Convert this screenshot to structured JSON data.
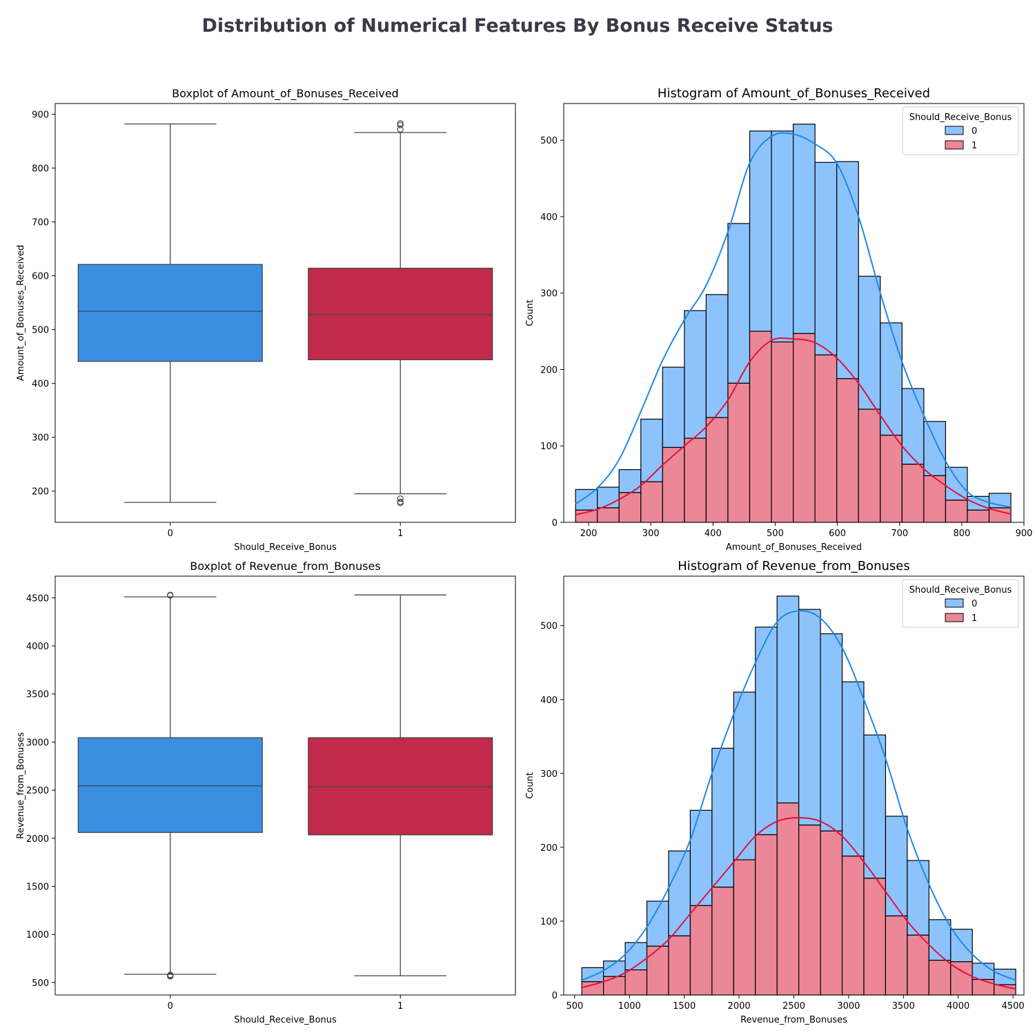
{
  "title": "Distribution of Numerical Features By Bonus Receive Status",
  "colors": {
    "box0": "#3a8fe3",
    "box1": "#c12a4a",
    "hist0": "#8dc3fd",
    "hist1": "#ec8798",
    "kde0": "#1e88e5",
    "kde1": "#dc143c"
  },
  "chart_data": [
    {
      "type": "boxplot",
      "title": "Boxplot of Amount_of_Bonuses_Received",
      "xlabel": "Should_Receive_Bonus",
      "ylabel": "Amount_of_Bonuses_Received",
      "categories": [
        "0",
        "1"
      ],
      "ylim": [
        142,
        920
      ],
      "yticks": [
        200,
        300,
        400,
        500,
        600,
        700,
        800,
        900
      ],
      "boxes": [
        {
          "category": "0",
          "whisker_low": 179,
          "q1": 441,
          "median": 534,
          "q3": 621,
          "whisker_high": 882,
          "outliers": []
        },
        {
          "category": "1",
          "whisker_low": 195,
          "q1": 444,
          "median": 528,
          "q3": 614,
          "whisker_high": 866,
          "outliers": [
            178,
            180,
            186,
            872,
            880,
            883
          ]
        }
      ]
    },
    {
      "type": "histogram",
      "title": "Histogram of Amount_of_Bonuses_Received",
      "xlabel": "Amount_of_Bonuses_Received",
      "ylabel": "Count",
      "legend": {
        "title": "Should_Receive_Bonus",
        "labels": [
          "0",
          "1"
        ],
        "position": "top-right"
      },
      "multiple": "stack",
      "xlim": [
        160,
        900
      ],
      "ylim": [
        0,
        548
      ],
      "xticks": [
        200,
        300,
        400,
        500,
        600,
        700,
        800,
        900
      ],
      "yticks": [
        0,
        100,
        200,
        300,
        400,
        500
      ],
      "bin_edges": [
        179,
        214,
        249,
        284,
        319,
        354,
        389,
        424,
        459,
        494,
        529,
        564,
        599,
        634,
        669,
        704,
        739,
        774,
        809,
        844,
        879
      ],
      "series": [
        {
          "name": "0",
          "stack_totals": [
            43,
            46,
            69,
            135,
            203,
            277,
            298,
            391,
            512,
            512,
            521,
            471,
            472,
            322,
            261,
            175,
            132,
            72,
            34,
            38
          ]
        },
        {
          "name": "1",
          "values": [
            16,
            19,
            39,
            53,
            98,
            110,
            137,
            182,
            250,
            236,
            247,
            219,
            188,
            148,
            114,
            76,
            61,
            29,
            16,
            19
          ]
        }
      ],
      "kde": [
        {
          "name": "0",
          "x": [
            179,
            214,
            249,
            284,
            319,
            354,
            389,
            424,
            459,
            494,
            529,
            564,
            599,
            634,
            669,
            704,
            739,
            774,
            809,
            844,
            879
          ],
          "y": [
            24,
            45,
            82,
            145,
            212,
            265,
            310,
            380,
            470,
            505,
            508,
            495,
            470,
            400,
            300,
            210,
            140,
            80,
            40,
            26,
            20
          ]
        },
        {
          "name": "1",
          "x": [
            179,
            214,
            249,
            284,
            319,
            354,
            389,
            424,
            459,
            494,
            529,
            564,
            599,
            634,
            669,
            704,
            739,
            774,
            809,
            844,
            879
          ],
          "y": [
            10,
            17,
            30,
            48,
            75,
            100,
            125,
            160,
            210,
            238,
            240,
            235,
            215,
            182,
            140,
            100,
            70,
            48,
            30,
            18,
            11
          ]
        }
      ]
    },
    {
      "type": "boxplot",
      "title": "Boxplot of Revenue_from_Bonuses",
      "xlabel": "Should_Receive_Bonus",
      "ylabel": "Revenue_from_Bonuses",
      "categories": [
        "0",
        "1"
      ],
      "ylim": [
        370,
        4725
      ],
      "yticks": [
        500,
        1000,
        1500,
        2000,
        2500,
        3000,
        3500,
        4000,
        4500
      ],
      "boxes": [
        {
          "category": "0",
          "whisker_low": 585,
          "q1": 2060,
          "median": 2545,
          "q3": 3045,
          "whisker_high": 4510,
          "outliers": [
            565,
            570,
            578,
            4525,
            4530
          ]
        },
        {
          "category": "1",
          "whisker_low": 570,
          "q1": 2035,
          "median": 2535,
          "q3": 3045,
          "whisker_high": 4530,
          "outliers": []
        }
      ]
    },
    {
      "type": "histogram",
      "title": "Histogram of Revenue_from_Bonuses",
      "xlabel": "Revenue_from_Bonuses",
      "ylabel": "Count",
      "legend": {
        "title": "Should_Receive_Bonus",
        "labels": [
          "0",
          "1"
        ],
        "position": "top-right"
      },
      "multiple": "stack",
      "xlim": [
        400,
        4600
      ],
      "ylim": [
        0,
        567
      ],
      "xticks": [
        500,
        1000,
        1500,
        2000,
        2500,
        3000,
        3500,
        4000,
        4500
      ],
      "yticks": [
        0,
        100,
        200,
        300,
        400,
        500
      ],
      "bin_edges": [
        565,
        763,
        961,
        1159,
        1357,
        1555,
        1753,
        1951,
        2149,
        2347,
        2545,
        2743,
        2941,
        3139,
        3337,
        3535,
        3733,
        3931,
        4129,
        4327,
        4525
      ],
      "series": [
        {
          "name": "0",
          "stack_totals": [
            37,
            46,
            71,
            127,
            195,
            250,
            334,
            410,
            498,
            540,
            522,
            489,
            424,
            352,
            242,
            182,
            102,
            89,
            43,
            35
          ]
        },
        {
          "name": "1",
          "values": [
            18,
            25,
            34,
            66,
            80,
            121,
            146,
            183,
            217,
            260,
            230,
            222,
            188,
            158,
            107,
            81,
            47,
            45,
            21,
            14
          ]
        }
      ],
      "kde": [
        {
          "name": "0",
          "x": [
            565,
            763,
            961,
            1159,
            1357,
            1555,
            1753,
            1951,
            2149,
            2347,
            2545,
            2743,
            2941,
            3139,
            3337,
            3535,
            3733,
            3931,
            4129,
            4327,
            4525
          ],
          "y": [
            20,
            33,
            55,
            92,
            145,
            210,
            300,
            380,
            450,
            505,
            520,
            510,
            470,
            400,
            320,
            225,
            150,
            92,
            55,
            32,
            20
          ]
        },
        {
          "name": "1",
          "x": [
            565,
            763,
            961,
            1159,
            1357,
            1555,
            1753,
            1951,
            2149,
            2347,
            2545,
            2743,
            2941,
            3139,
            3337,
            3535,
            3733,
            3931,
            4129,
            4327,
            4525
          ],
          "y": [
            10,
            18,
            30,
            50,
            75,
            110,
            145,
            180,
            215,
            235,
            240,
            235,
            215,
            180,
            140,
            100,
            68,
            42,
            25,
            15,
            8
          ]
        }
      ]
    }
  ]
}
